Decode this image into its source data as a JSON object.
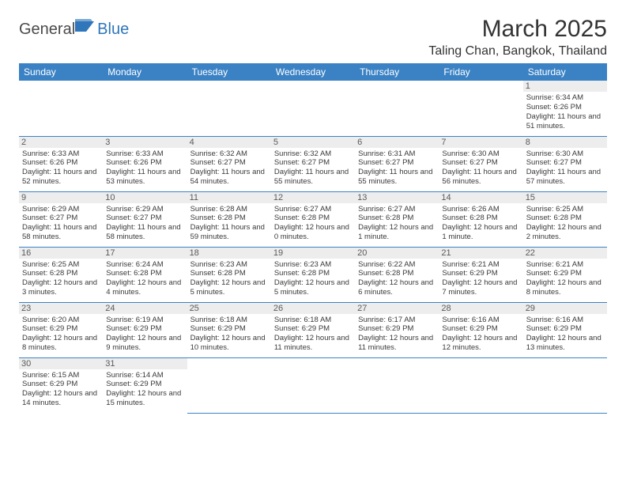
{
  "brand": {
    "part1": "General",
    "part2": "Blue"
  },
  "title": "March 2025",
  "location": "Taling Chan, Bangkok, Thailand",
  "headers": [
    "Sunday",
    "Monday",
    "Tuesday",
    "Wednesday",
    "Thursday",
    "Friday",
    "Saturday"
  ],
  "colors": {
    "header_bg": "#3b82c4",
    "header_fg": "#ffffff",
    "daynum_bg": "#ededed",
    "rule": "#3b82c4",
    "brand_gray": "#4a4a4a",
    "brand_blue": "#2f76ba"
  },
  "weeks": [
    [
      null,
      null,
      null,
      null,
      null,
      null,
      {
        "n": "1",
        "sr": "Sunrise: 6:34 AM",
        "ss": "Sunset: 6:26 PM",
        "dl": "Daylight: 11 hours and 51 minutes."
      }
    ],
    [
      {
        "n": "2",
        "sr": "Sunrise: 6:33 AM",
        "ss": "Sunset: 6:26 PM",
        "dl": "Daylight: 11 hours and 52 minutes."
      },
      {
        "n": "3",
        "sr": "Sunrise: 6:33 AM",
        "ss": "Sunset: 6:26 PM",
        "dl": "Daylight: 11 hours and 53 minutes."
      },
      {
        "n": "4",
        "sr": "Sunrise: 6:32 AM",
        "ss": "Sunset: 6:27 PM",
        "dl": "Daylight: 11 hours and 54 minutes."
      },
      {
        "n": "5",
        "sr": "Sunrise: 6:32 AM",
        "ss": "Sunset: 6:27 PM",
        "dl": "Daylight: 11 hours and 55 minutes."
      },
      {
        "n": "6",
        "sr": "Sunrise: 6:31 AM",
        "ss": "Sunset: 6:27 PM",
        "dl": "Daylight: 11 hours and 55 minutes."
      },
      {
        "n": "7",
        "sr": "Sunrise: 6:30 AM",
        "ss": "Sunset: 6:27 PM",
        "dl": "Daylight: 11 hours and 56 minutes."
      },
      {
        "n": "8",
        "sr": "Sunrise: 6:30 AM",
        "ss": "Sunset: 6:27 PM",
        "dl": "Daylight: 11 hours and 57 minutes."
      }
    ],
    [
      {
        "n": "9",
        "sr": "Sunrise: 6:29 AM",
        "ss": "Sunset: 6:27 PM",
        "dl": "Daylight: 11 hours and 58 minutes."
      },
      {
        "n": "10",
        "sr": "Sunrise: 6:29 AM",
        "ss": "Sunset: 6:27 PM",
        "dl": "Daylight: 11 hours and 58 minutes."
      },
      {
        "n": "11",
        "sr": "Sunrise: 6:28 AM",
        "ss": "Sunset: 6:28 PM",
        "dl": "Daylight: 11 hours and 59 minutes."
      },
      {
        "n": "12",
        "sr": "Sunrise: 6:27 AM",
        "ss": "Sunset: 6:28 PM",
        "dl": "Daylight: 12 hours and 0 minutes."
      },
      {
        "n": "13",
        "sr": "Sunrise: 6:27 AM",
        "ss": "Sunset: 6:28 PM",
        "dl": "Daylight: 12 hours and 1 minute."
      },
      {
        "n": "14",
        "sr": "Sunrise: 6:26 AM",
        "ss": "Sunset: 6:28 PM",
        "dl": "Daylight: 12 hours and 1 minute."
      },
      {
        "n": "15",
        "sr": "Sunrise: 6:25 AM",
        "ss": "Sunset: 6:28 PM",
        "dl": "Daylight: 12 hours and 2 minutes."
      }
    ],
    [
      {
        "n": "16",
        "sr": "Sunrise: 6:25 AM",
        "ss": "Sunset: 6:28 PM",
        "dl": "Daylight: 12 hours and 3 minutes."
      },
      {
        "n": "17",
        "sr": "Sunrise: 6:24 AM",
        "ss": "Sunset: 6:28 PM",
        "dl": "Daylight: 12 hours and 4 minutes."
      },
      {
        "n": "18",
        "sr": "Sunrise: 6:23 AM",
        "ss": "Sunset: 6:28 PM",
        "dl": "Daylight: 12 hours and 5 minutes."
      },
      {
        "n": "19",
        "sr": "Sunrise: 6:23 AM",
        "ss": "Sunset: 6:28 PM",
        "dl": "Daylight: 12 hours and 5 minutes."
      },
      {
        "n": "20",
        "sr": "Sunrise: 6:22 AM",
        "ss": "Sunset: 6:28 PM",
        "dl": "Daylight: 12 hours and 6 minutes."
      },
      {
        "n": "21",
        "sr": "Sunrise: 6:21 AM",
        "ss": "Sunset: 6:29 PM",
        "dl": "Daylight: 12 hours and 7 minutes."
      },
      {
        "n": "22",
        "sr": "Sunrise: 6:21 AM",
        "ss": "Sunset: 6:29 PM",
        "dl": "Daylight: 12 hours and 8 minutes."
      }
    ],
    [
      {
        "n": "23",
        "sr": "Sunrise: 6:20 AM",
        "ss": "Sunset: 6:29 PM",
        "dl": "Daylight: 12 hours and 8 minutes."
      },
      {
        "n": "24",
        "sr": "Sunrise: 6:19 AM",
        "ss": "Sunset: 6:29 PM",
        "dl": "Daylight: 12 hours and 9 minutes."
      },
      {
        "n": "25",
        "sr": "Sunrise: 6:18 AM",
        "ss": "Sunset: 6:29 PM",
        "dl": "Daylight: 12 hours and 10 minutes."
      },
      {
        "n": "26",
        "sr": "Sunrise: 6:18 AM",
        "ss": "Sunset: 6:29 PM",
        "dl": "Daylight: 12 hours and 11 minutes."
      },
      {
        "n": "27",
        "sr": "Sunrise: 6:17 AM",
        "ss": "Sunset: 6:29 PM",
        "dl": "Daylight: 12 hours and 11 minutes."
      },
      {
        "n": "28",
        "sr": "Sunrise: 6:16 AM",
        "ss": "Sunset: 6:29 PM",
        "dl": "Daylight: 12 hours and 12 minutes."
      },
      {
        "n": "29",
        "sr": "Sunrise: 6:16 AM",
        "ss": "Sunset: 6:29 PM",
        "dl": "Daylight: 12 hours and 13 minutes."
      }
    ],
    [
      {
        "n": "30",
        "sr": "Sunrise: 6:15 AM",
        "ss": "Sunset: 6:29 PM",
        "dl": "Daylight: 12 hours and 14 minutes."
      },
      {
        "n": "31",
        "sr": "Sunrise: 6:14 AM",
        "ss": "Sunset: 6:29 PM",
        "dl": "Daylight: 12 hours and 15 minutes."
      },
      null,
      null,
      null,
      null,
      null
    ]
  ]
}
